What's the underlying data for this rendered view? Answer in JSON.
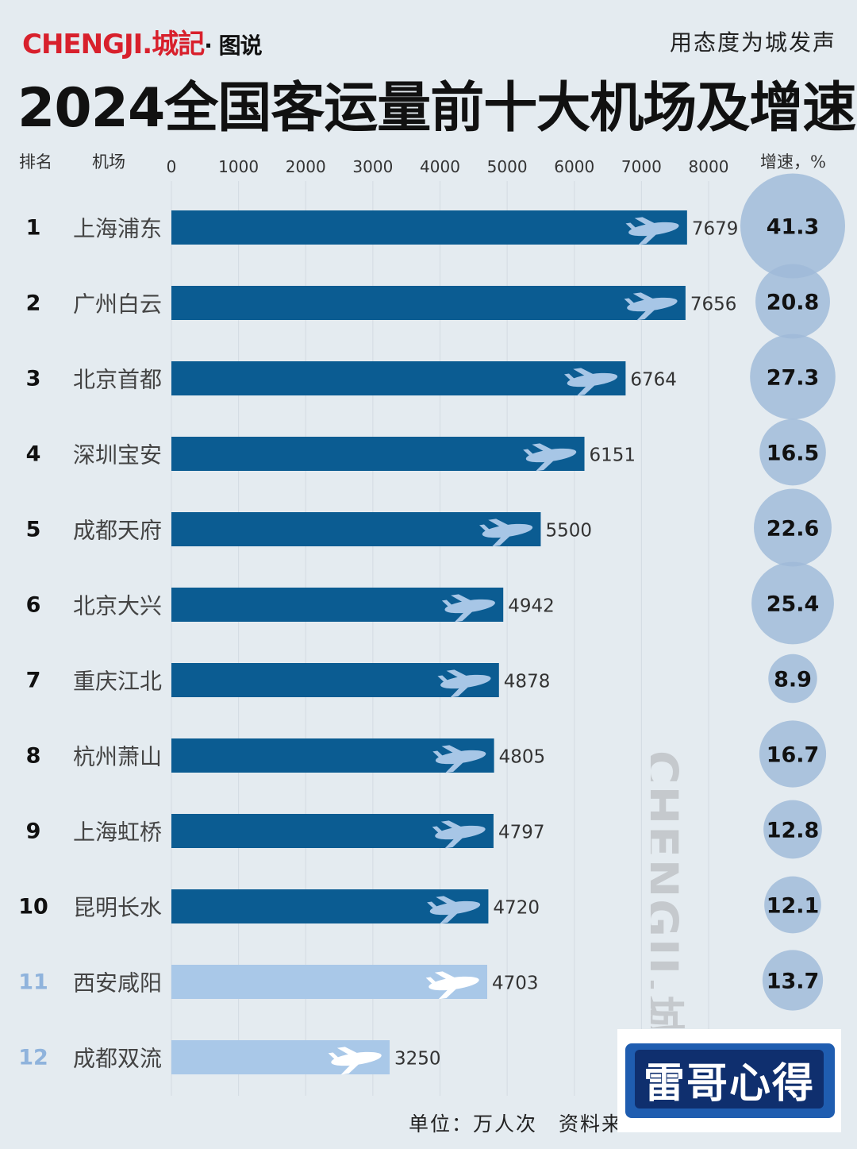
{
  "header": {
    "logo_brand": "CHENGJI.",
    "logo_cn": "城記",
    "logo_suffix": "· 图说",
    "slogan": "用态度为城发声",
    "title": "2024全国客运量前十大机场及增速"
  },
  "columns": {
    "rank": "排名",
    "airport": "机场",
    "growth": "增速，%"
  },
  "footer": {
    "text": "单位：万人次　资料来"
  },
  "watermark": "CHENGJI.城",
  "stamp": "雷哥心得",
  "colors": {
    "bar_top10": "#0b5c92",
    "bar_extra": "#a9c8e8",
    "bubble": "#9fb9d8",
    "rank_extra": "#8fb3dc",
    "plane_top10": "#a7c6e6",
    "plane_extra": "#ffffff"
  },
  "chart_data": {
    "type": "bar",
    "orientation": "horizontal",
    "xlim": [
      0,
      8000
    ],
    "xticks": [
      "0",
      "1000",
      "2000",
      "3000",
      "4000",
      "5000",
      "6000",
      "7000",
      "8000"
    ],
    "rows": [
      {
        "rank": "1",
        "airport": "上海浦东",
        "value": 7679,
        "growth": "41.3",
        "group": "top10"
      },
      {
        "rank": "2",
        "airport": "广州白云",
        "value": 7656,
        "growth": "20.8",
        "group": "top10"
      },
      {
        "rank": "3",
        "airport": "北京首都",
        "value": 6764,
        "growth": "27.3",
        "group": "top10"
      },
      {
        "rank": "4",
        "airport": "深圳宝安",
        "value": 6151,
        "growth": "16.5",
        "group": "top10"
      },
      {
        "rank": "5",
        "airport": "成都天府",
        "value": 5500,
        "growth": "22.6",
        "group": "top10"
      },
      {
        "rank": "6",
        "airport": "北京大兴",
        "value": 4942,
        "growth": "25.4",
        "group": "top10"
      },
      {
        "rank": "7",
        "airport": "重庆江北",
        "value": 4878,
        "growth": "8.9",
        "group": "top10"
      },
      {
        "rank": "8",
        "airport": "杭州萧山",
        "value": 4805,
        "growth": "16.7",
        "group": "top10"
      },
      {
        "rank": "9",
        "airport": "上海虹桥",
        "value": 4797,
        "growth": "12.8",
        "group": "top10"
      },
      {
        "rank": "10",
        "airport": "昆明长水",
        "value": 4720,
        "growth": "12.1",
        "group": "top10"
      },
      {
        "rank": "11",
        "airport": "西安咸阳",
        "value": 4703,
        "growth": "13.7",
        "group": "extra"
      },
      {
        "rank": "12",
        "airport": "成都双流",
        "value": 3250,
        "growth": "",
        "group": "extra"
      }
    ]
  }
}
